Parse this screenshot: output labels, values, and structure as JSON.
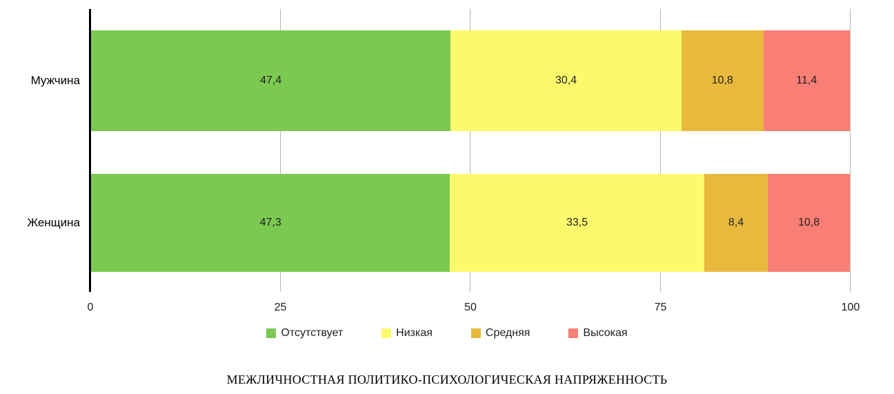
{
  "chart_data": {
    "type": "bar",
    "orientation": "horizontal-stacked",
    "title": "МЕЖЛИЧНОСТНАЯ ПОЛИТИКО-ПСИХОЛОГИЧЕСКАЯ НАПРЯЖЕННОСТЬ",
    "categories": [
      "Мужчина",
      "Женщина"
    ],
    "series": [
      {
        "name": "Отсутствует",
        "color": "#7cc952",
        "values": [
          47.4,
          47.3
        ],
        "labels": [
          "47,4",
          "47,3"
        ]
      },
      {
        "name": "Низкая",
        "color": "#fdf96d",
        "values": [
          30.4,
          33.5
        ],
        "labels": [
          "30,4",
          "33,5"
        ]
      },
      {
        "name": "Средняя",
        "color": "#e9b93d",
        "values": [
          10.8,
          8.4
        ],
        "labels": [
          "10,8",
          "8,4"
        ]
      },
      {
        "name": "Высокая",
        "color": "#f97e75",
        "values": [
          11.4,
          10.8
        ],
        "labels": [
          "11,4",
          "10,8"
        ]
      }
    ],
    "xlim": [
      0,
      100
    ],
    "x_ticks": [
      {
        "label": "0",
        "value": 0
      },
      {
        "label": "25",
        "value": 25
      },
      {
        "label": "50",
        "value": 50
      },
      {
        "label": "75",
        "value": 75
      },
      {
        "label": "100",
        "value": 100
      }
    ],
    "grid": true,
    "legend_position": "bottom",
    "colors": {
      "axis": "#000000",
      "gridline": "#b3b3b3",
      "label_text": "#1f1f1f"
    }
  }
}
